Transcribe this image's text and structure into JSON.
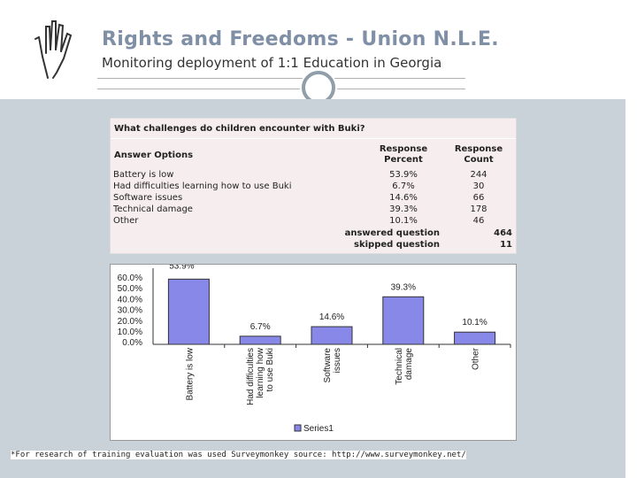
{
  "header": {
    "title": "Rights and Freedoms - Union N.L.E.",
    "subtitle": "Monitoring deployment of 1:1 Education in Georgia"
  },
  "survey": {
    "question": "What challenges do children encounter with Buki?",
    "col_options": "Answer Options",
    "col_percent_1": "Response",
    "col_percent_2": "Percent",
    "col_count_1": "Response",
    "col_count_2": "Count",
    "rows": [
      {
        "option": "Battery is low",
        "percent": "53.9%",
        "count": "244"
      },
      {
        "option": "Had difficulties learning how to use Buki",
        "percent": "6.7%",
        "count": "30"
      },
      {
        "option": "Software issues",
        "percent": "14.6%",
        "count": "66"
      },
      {
        "option": "Technical damage",
        "percent": "39.3%",
        "count": "178"
      },
      {
        "option": "Other",
        "percent": "10.1%",
        "count": "46"
      }
    ],
    "answered_label": "answered question",
    "answered_value": "464",
    "skipped_label": "skipped question",
    "skipped_value": "11"
  },
  "chart_data": {
    "type": "bar",
    "categories": [
      "Battery is low",
      "Had difficulties learning how to use Buki",
      "Software issues",
      "Technical damage",
      "Other"
    ],
    "category_lines": [
      [
        "Battery is low"
      ],
      [
        "Had difficulties",
        "learning how",
        "to use Buki"
      ],
      [
        "Software",
        "issues"
      ],
      [
        "Technical",
        "damage"
      ],
      [
        "Other"
      ]
    ],
    "series": [
      {
        "name": "Series1",
        "values": [
          53.9,
          6.7,
          14.6,
          39.3,
          10.1
        ]
      }
    ],
    "data_labels": [
      "53.9%",
      "6.7%",
      "14.6%",
      "39.3%",
      "10.1%"
    ],
    "y_ticks": [
      "60.0%",
      "50.0%",
      "40.0%",
      "30.0%",
      "20.0%",
      "10.0%",
      "0.0%"
    ],
    "ylim": [
      0,
      60
    ],
    "bar_color": "#8888e8",
    "legend_position": "bottom",
    "grid": false
  },
  "footnote": "*For research of training evaluation was used Surveymonkey source: http://www.surveymonkey.net/"
}
